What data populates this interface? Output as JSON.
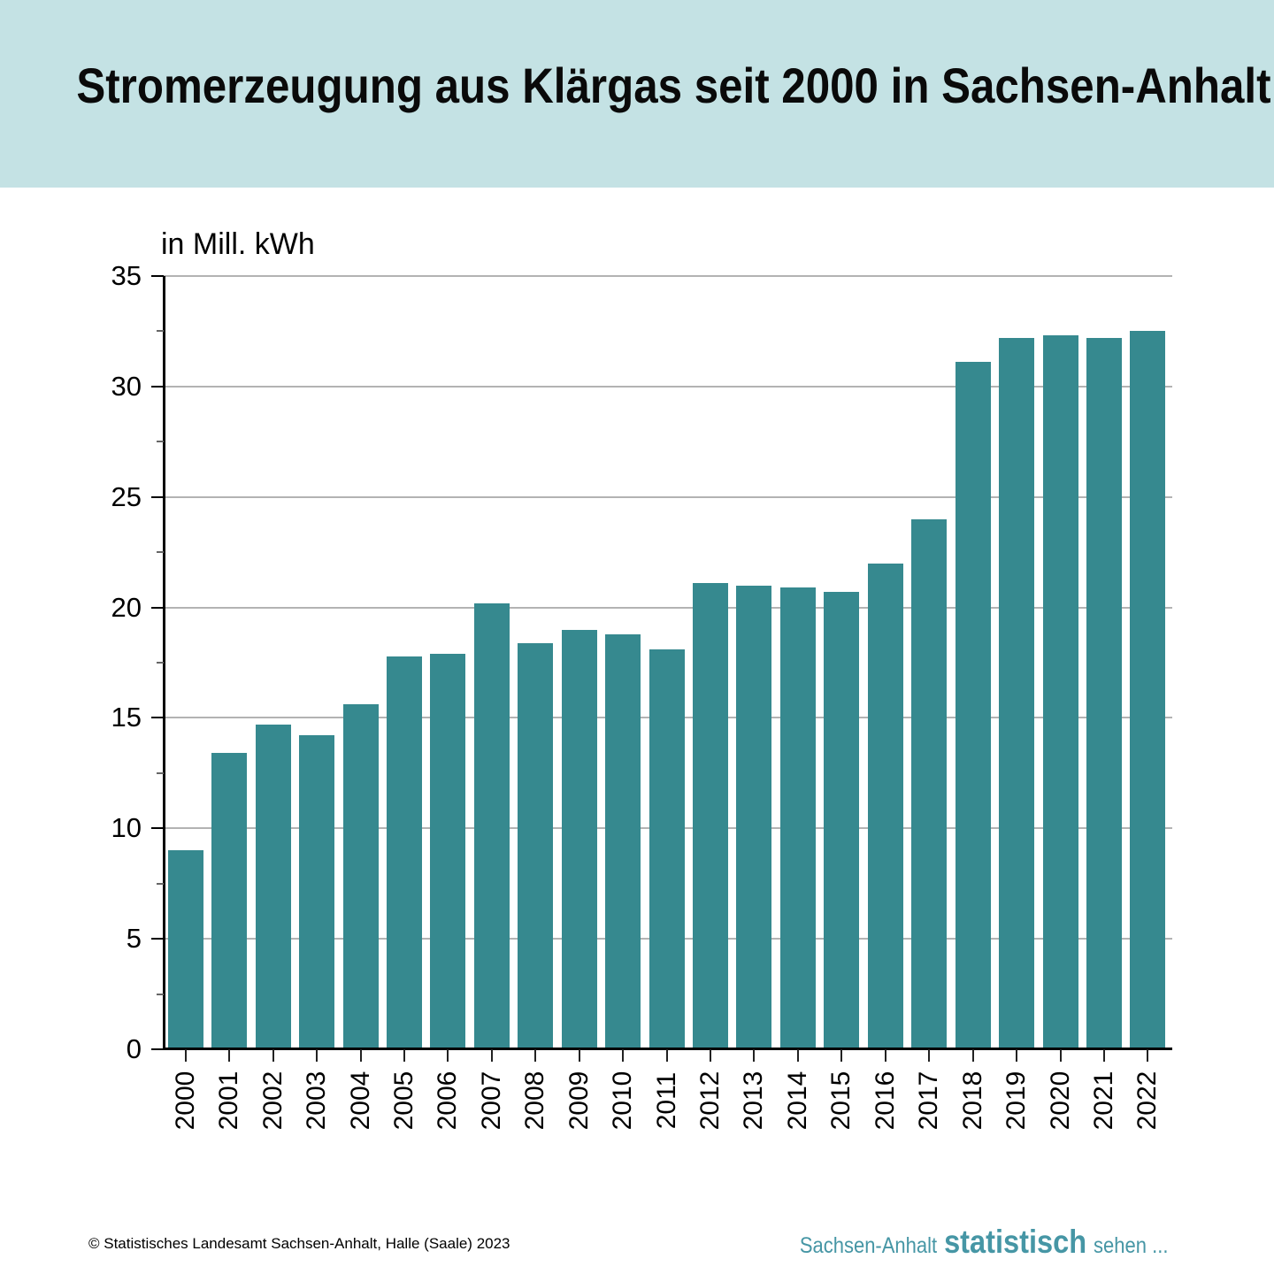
{
  "header": {
    "title": "Stromerzeugung aus Klärgas seit 2000 in Sachsen-Anhalt",
    "background_color": "#C4E2E4"
  },
  "chart_data": {
    "type": "bar",
    "title": "Stromerzeugung aus Klärgas seit 2000 in Sachsen-Anhalt",
    "unit_label": "in Mill. kWh",
    "categories": [
      "2000",
      "2001",
      "2002",
      "2003",
      "2004",
      "2005",
      "2006",
      "2007",
      "2008",
      "2009",
      "2010",
      "2011",
      "2012",
      "2013",
      "2014",
      "2015",
      "2016",
      "2017",
      "2018",
      "2019",
      "2020",
      "2021",
      "2022"
    ],
    "values": [
      9.0,
      13.4,
      14.7,
      14.2,
      15.6,
      17.8,
      17.9,
      20.2,
      18.4,
      19.0,
      18.8,
      18.1,
      21.1,
      21.0,
      20.9,
      20.7,
      22.0,
      24.0,
      31.1,
      32.2,
      32.3,
      32.2,
      32.5
    ],
    "ylim": [
      0,
      35
    ],
    "ytick_step": 5,
    "minor_tick_step": 2.5,
    "grid": true,
    "legend": "none",
    "bar_color": "#36898F",
    "gridline_color": "#B3B3B3",
    "axis_color": "#000000"
  },
  "footer": {
    "copyright": "© Statistisches Landesamt Sachsen-Anhalt, Halle (Saale) 2023",
    "brand_prefix": "Sachsen-Anhalt",
    "brand_bold": "statistisch",
    "brand_suffix": "sehen ...",
    "brand_color": "#4696A5"
  }
}
